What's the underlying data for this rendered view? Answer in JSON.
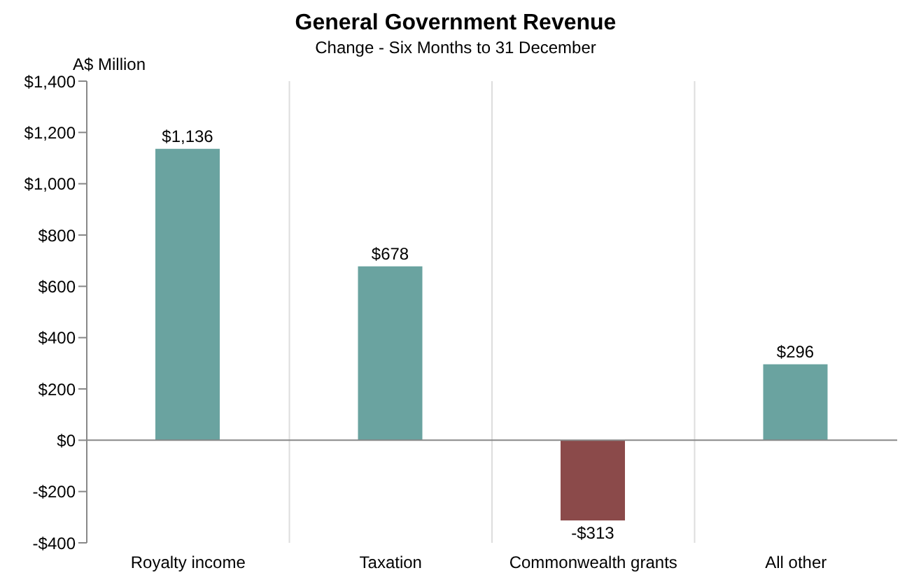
{
  "chart_data": {
    "type": "bar",
    "title": "General Government Revenue",
    "subtitle": "Change - Six Months to 31 December",
    "ylabel": "A$ Million",
    "categories": [
      "Royalty income",
      "Taxation",
      "Commonwealth grants",
      "All other"
    ],
    "values": [
      1136,
      678,
      -313,
      296
    ],
    "colors": [
      "#6aa3a0",
      "#6aa3a0",
      "#8b4a4a",
      "#6aa3a0"
    ],
    "value_labels": [
      "$1,136",
      "$678",
      "-$313",
      "$296"
    ],
    "ylim": [
      -400,
      1400
    ],
    "yticks": [
      {
        "value": -400,
        "label": "-$400"
      },
      {
        "value": -200,
        "label": "-$200"
      },
      {
        "value": 0,
        "label": "$0"
      },
      {
        "value": 200,
        "label": "$200"
      },
      {
        "value": 400,
        "label": "$400"
      },
      {
        "value": 600,
        "label": "$600"
      },
      {
        "value": 800,
        "label": "$800"
      },
      {
        "value": 1000,
        "label": "$1,000"
      },
      {
        "value": 1200,
        "label": "$1,200"
      },
      {
        "value": 1400,
        "label": "$1,400"
      }
    ],
    "grid": "x"
  }
}
